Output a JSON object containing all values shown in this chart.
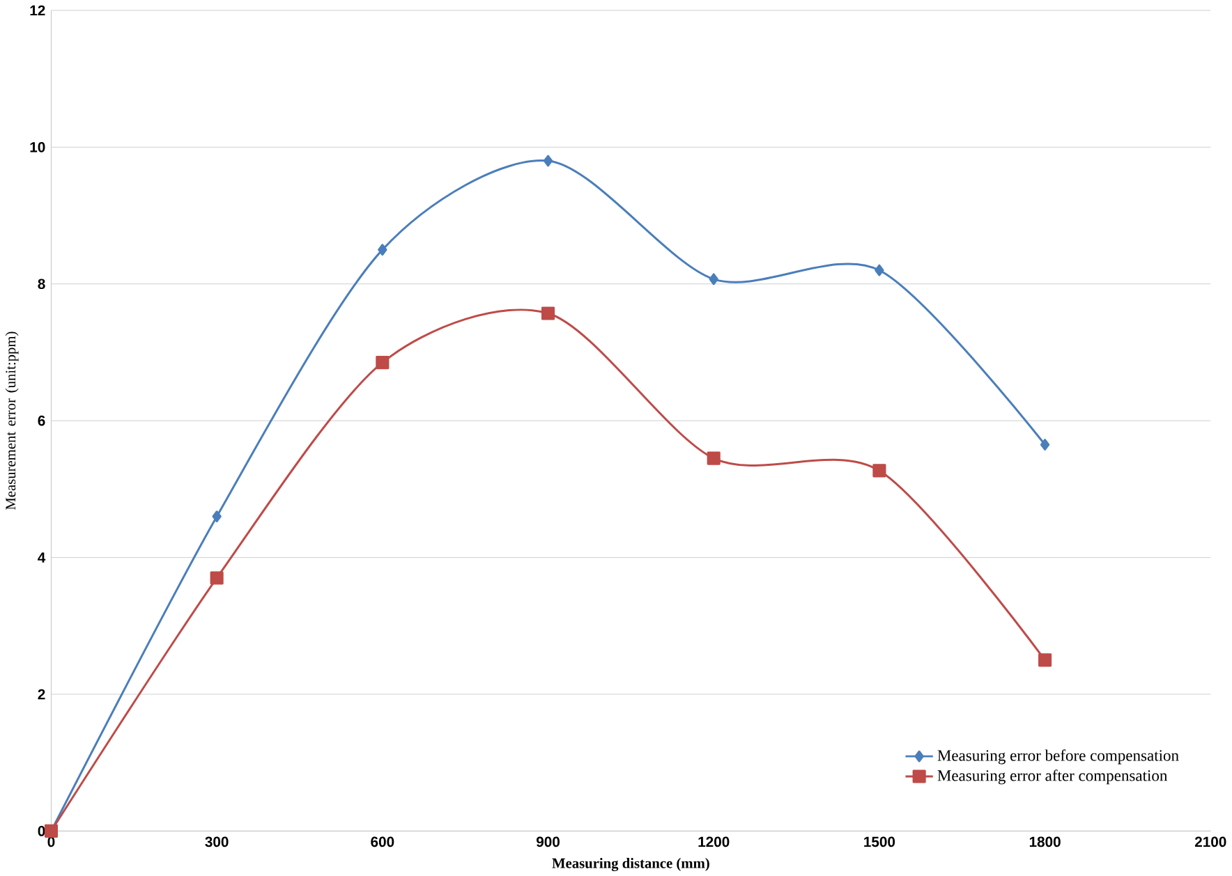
{
  "chart_data": {
    "type": "line",
    "xlabel": "Measuring distance (mm)",
    "ylabel": "Measurement error (unit:ppm)",
    "x": [
      0,
      300,
      600,
      900,
      1200,
      1500,
      1800
    ],
    "series": [
      {
        "name": "Measuring error before compensation",
        "color": "#4a7ebb",
        "marker": "diamond",
        "values": [
          0,
          4.6,
          8.5,
          9.8,
          8.07,
          8.2,
          5.65
        ]
      },
      {
        "name": "Measuring error after compensation",
        "color": "#be4b48",
        "marker": "square",
        "values": [
          0,
          3.7,
          6.85,
          7.57,
          5.45,
          5.27,
          2.5
        ]
      }
    ],
    "xlim": [
      0,
      2100
    ],
    "xticks": [
      0,
      300,
      600,
      900,
      1200,
      1500,
      1800,
      2100
    ],
    "ylim": [
      0,
      12
    ],
    "yticks": [
      0,
      2,
      4,
      6,
      8,
      10,
      12
    ],
    "grid": "y",
    "legend": "bottom right",
    "line_style": "solid"
  }
}
